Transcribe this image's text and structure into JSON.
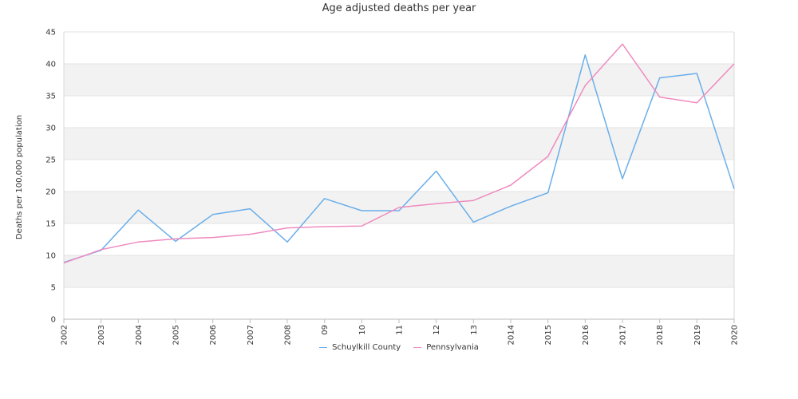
{
  "chart_data": {
    "type": "line",
    "title": "Age adjusted deaths per year",
    "xlabel": "",
    "ylabel": "Deaths per 100,000 population",
    "categories": [
      "2002",
      "2003",
      "2004",
      "2005",
      "2006",
      "2007",
      "2008",
      "09",
      "10",
      "11",
      "12",
      "13",
      "2014",
      "2015",
      "2016",
      "2017",
      "2018",
      "2019",
      "2020"
    ],
    "ylim": [
      0,
      45
    ],
    "yticks": [
      0,
      5,
      10,
      15,
      20,
      25,
      30,
      35,
      40,
      45
    ],
    "grid": "alternating horizontal bands",
    "legend_position": "bottom",
    "series": [
      {
        "name": "Schuylkill County",
        "color": "#6aaeea",
        "values": [
          8.9,
          10.8,
          17.1,
          12.2,
          16.4,
          17.3,
          12.1,
          18.9,
          17.0,
          17.0,
          23.2,
          15.2,
          17.7,
          19.8,
          41.4,
          22.0,
          37.8,
          38.5,
          20.4
        ]
      },
      {
        "name": "Pennsylvania",
        "color": "#ef8bbf",
        "values": [
          8.8,
          10.9,
          12.1,
          12.6,
          12.8,
          13.3,
          14.3,
          14.5,
          14.6,
          17.5,
          18.1,
          18.6,
          21.0,
          25.5,
          36.6,
          43.1,
          34.8,
          33.9,
          40.0
        ]
      }
    ]
  }
}
